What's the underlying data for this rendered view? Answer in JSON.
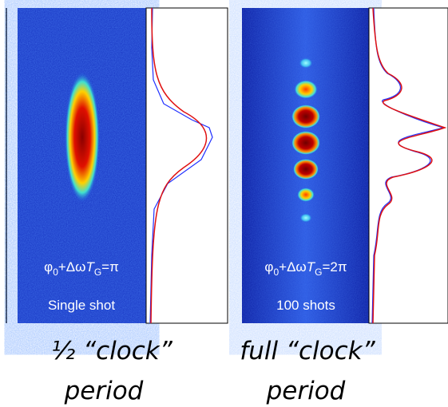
{
  "panels": [
    {
      "formula": [
        "φ",
        "0",
        "+Δω",
        "T",
        "G",
        "=π"
      ],
      "label": "Single shot",
      "caption": [
        "½ “clock”",
        "period"
      ]
    },
    {
      "formula": [
        "φ",
        "0",
        "+Δω",
        "T",
        "G",
        "=2π"
      ],
      "label": "100 shots",
      "caption": [
        "full “clock”",
        "period"
      ]
    }
  ]
}
